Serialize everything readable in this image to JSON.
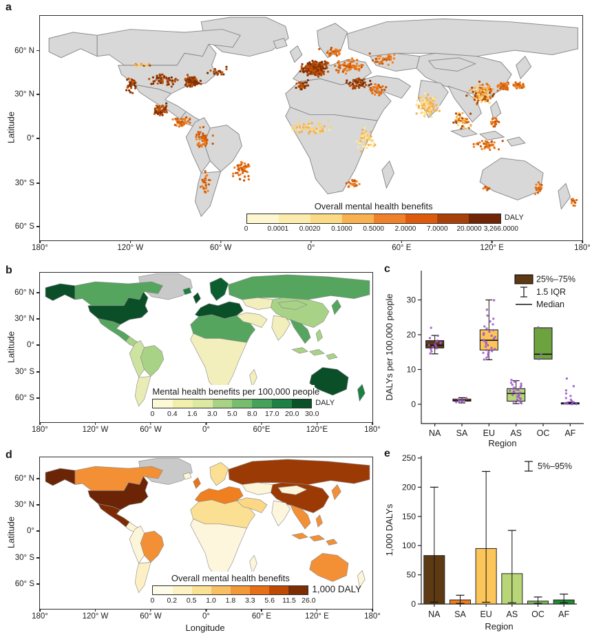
{
  "chart_data": [
    {
      "panel": "a",
      "type": "scatter-map",
      "ylabel": "Latitude",
      "yticks": [
        "60° N",
        "30° N",
        "0°",
        "30° S",
        "60° S"
      ],
      "xticks": [
        "180°",
        "120° W",
        "60° W",
        "0°",
        "60° E",
        "120° E",
        "180°"
      ],
      "land_color": "#d8d8d8",
      "border_color": "#8a8a8a",
      "legend": {
        "title": "Overall mental health benefits",
        "unit": "DALY",
        "ticks": [
          "0",
          "0.0001",
          "0.0020",
          "0.1000",
          "0.5000",
          "2.0000",
          "7.0000",
          "20.0000",
          "3,266.0000"
        ],
        "colors": [
          "#fdf6d0",
          "#fcecac",
          "#fbd985",
          "#f8b050",
          "#f08129",
          "#dd5a0d",
          "#a84109",
          "#6f2506"
        ]
      },
      "dot_palettes": {
        "dark": [
          "#a84708",
          "#8a3204",
          "#c35509",
          "#7b2d04"
        ],
        "orange": [
          "#e06a10",
          "#ef8123",
          "#c85608"
        ],
        "pale": [
          "#fbd26e",
          "#fce79c",
          "#f5ad4e"
        ],
        "mix": [
          "#e06a10",
          "#fbd26e",
          "#a84708",
          "#f5ad4e"
        ]
      },
      "dot_clusters": [
        {
          "lon": -98,
          "lat": 41,
          "sx": 11,
          "sy": 5,
          "n": 55,
          "p": "dark"
        },
        {
          "lon": -79,
          "lat": 40,
          "sx": 6,
          "sy": 4,
          "n": 75,
          "p": "dark"
        },
        {
          "lon": -119,
          "lat": 38,
          "sx": 4,
          "sy": 6,
          "n": 35,
          "p": "dark"
        },
        {
          "lon": -100,
          "lat": 21,
          "sx": 6,
          "sy": 4,
          "n": 55,
          "p": "dark"
        },
        {
          "lon": -86,
          "lat": 13,
          "sx": 7,
          "sy": 4,
          "n": 40,
          "p": "orange"
        },
        {
          "lon": -72,
          "lat": 2,
          "sx": 7,
          "sy": 7,
          "n": 45,
          "p": "orange"
        },
        {
          "lon": -46,
          "lat": -19,
          "sx": 7,
          "sy": 7,
          "n": 55,
          "p": "orange"
        },
        {
          "lon": -70,
          "lat": -27,
          "sx": 3,
          "sy": 9,
          "n": 28,
          "p": "orange"
        },
        {
          "lon": 3,
          "lat": 49,
          "sx": 9,
          "sy": 5,
          "n": 260,
          "p": "dark"
        },
        {
          "lon": 24,
          "lat": 51,
          "sx": 9,
          "sy": 5,
          "n": 70,
          "p": "orange"
        },
        {
          "lon": 14,
          "lat": 60,
          "sx": 8,
          "sy": 3,
          "n": 30,
          "p": "orange"
        },
        {
          "lon": -6,
          "lat": 38,
          "sx": 5,
          "sy": 3,
          "n": 30,
          "p": "dark"
        },
        {
          "lon": 31,
          "lat": 39,
          "sx": 8,
          "sy": 4,
          "n": 60,
          "p": "dark"
        },
        {
          "lon": 44,
          "lat": 35,
          "sx": 6,
          "sy": 5,
          "n": 40,
          "p": "orange"
        },
        {
          "lon": 0,
          "lat": 9,
          "sx": 13,
          "sy": 5,
          "n": 65,
          "p": "pale"
        },
        {
          "lon": 37,
          "lat": 1,
          "sx": 6,
          "sy": 8,
          "n": 50,
          "p": "pale"
        },
        {
          "lon": 28,
          "lat": -28,
          "sx": 5,
          "sy": 3,
          "n": 22,
          "p": "orange"
        },
        {
          "lon": 48,
          "lat": 55,
          "sx": 11,
          "sy": 4,
          "n": 40,
          "p": "orange"
        },
        {
          "lon": 77,
          "lat": 23,
          "sx": 7,
          "sy": 8,
          "n": 110,
          "p": "pale"
        },
        {
          "lon": 101,
          "lat": 14,
          "sx": 6,
          "sy": 6,
          "n": 50,
          "p": "mix"
        },
        {
          "lon": 113,
          "lat": 32,
          "sx": 8,
          "sy": 7,
          "n": 130,
          "p": "mix"
        },
        {
          "lon": 127,
          "lat": 37,
          "sx": 4,
          "sy": 3,
          "n": 40,
          "p": "orange"
        },
        {
          "lon": 138,
          "lat": 37,
          "sx": 4,
          "sy": 3,
          "n": 35,
          "p": "orange"
        },
        {
          "lon": 117,
          "lat": -2,
          "sx": 10,
          "sy": 4,
          "n": 40,
          "p": "orange"
        },
        {
          "lon": 122,
          "lat": 13,
          "sx": 3,
          "sy": 5,
          "n": 22,
          "p": "orange"
        },
        {
          "lon": 151,
          "lat": -31,
          "sx": 3,
          "sy": 4,
          "n": 18,
          "p": "orange"
        },
        {
          "lon": 116,
          "lat": -32,
          "sx": 2,
          "sy": 2,
          "n": 8,
          "p": "orange"
        },
        {
          "lon": 174,
          "lat": -40,
          "sx": 2,
          "sy": 3,
          "n": 10,
          "p": "orange"
        },
        {
          "lon": -62,
          "lat": 47,
          "sx": 7,
          "sy": 3,
          "n": 18,
          "p": "dark"
        },
        {
          "lon": -113,
          "lat": 51,
          "sx": 7,
          "sy": 2,
          "n": 12,
          "p": "mix"
        }
      ]
    },
    {
      "panel": "b",
      "type": "choropleth",
      "ylabel": "Latitude",
      "yticks": [
        "60° N",
        "30° N",
        "0°",
        "30° S",
        "60° S"
      ],
      "xticks": [
        "180°",
        "120° W",
        "60° W",
        "0°",
        "60°E",
        "120°E",
        "180°"
      ],
      "border_color": "#8a8a8a",
      "legend": {
        "title": "Mental health benefits per 100,000 people",
        "unit": "DALY",
        "ticks": [
          "0",
          "0.4",
          "1.6",
          "3.0",
          "5.0",
          "8.0",
          "17.0",
          "20.0",
          "30.0"
        ],
        "colors": [
          "#fcfad6",
          "#f2eeac",
          "#dde8a2",
          "#a8d386",
          "#78bd6d",
          "#46a25a",
          "#1d8044",
          "#0a5329"
        ]
      },
      "country_colors": {
        "greenland": "#c9c9c9",
        "iceland": "#1d8044",
        "alaska": "#0a4f28",
        "canada": "#55a55e",
        "usa": "#0a4f28",
        "mexico": "#55a55e",
        "central_america": "#a8d386",
        "samerica_west": "#cde3a0",
        "brazil": "#a8d386",
        "argentina": "#e9ecb4",
        "africa_north": "#55a55e",
        "africa_sub": "#f2efbc",
        "madagascar": "#f2efbc",
        "uk": "#0a4f28",
        "europe": "#0a4f28",
        "scandinavia": "#0c5e2e",
        "russia": "#55a55e",
        "central_asia": "#f2efbc",
        "china": "#a8d386",
        "mongolia": "#a8d386",
        "middle_east": "#f2efbc",
        "india": "#f2efbc",
        "se_asia": "#55a55e",
        "japan": "#55a55e",
        "philippines": "#a8d386",
        "indonesia": "#a8d386",
        "australia": "#0a4f28",
        "new_zealand": "#1d8044"
      }
    },
    {
      "panel": "c",
      "type": "box",
      "ylabel": "DALYs per 100,000 people",
      "xlabel": "Region",
      "categories": [
        "NA",
        "SA",
        "EU",
        "AS",
        "OC",
        "AF"
      ],
      "yticks": [
        0,
        10,
        20,
        30
      ],
      "ylim": [
        -5,
        38
      ],
      "legend": {
        "box": "25%–75%",
        "iqr": "1.5 IQR",
        "median": "Median"
      },
      "point_color": "#9a55cc",
      "boxes": [
        {
          "region": "NA",
          "q1": 16.2,
          "median": 17.0,
          "q3": 18.3,
          "wlow": 14.5,
          "whigh": 19.8,
          "color": "#5d3a14"
        },
        {
          "region": "SA",
          "q1": 0.9,
          "median": 1.1,
          "q3": 1.5,
          "wlow": 0.4,
          "whigh": 1.9,
          "color": "#f07d1d"
        },
        {
          "region": "EU",
          "q1": 15.6,
          "median": 18.4,
          "q3": 21.4,
          "wlow": 12.8,
          "whigh": 30.0,
          "color": "#fbc55a"
        },
        {
          "region": "AS",
          "q1": 0.9,
          "median": 3.1,
          "q3": 4.5,
          "wlow": 0.2,
          "whigh": 6.8,
          "color": "#b8d677"
        },
        {
          "region": "OC",
          "q1": 13.0,
          "median": 14.4,
          "q3": 22.0,
          "wlow": 12.9,
          "whigh": 22.1,
          "color": "#6da33e"
        },
        {
          "region": "AF",
          "q1": 0.1,
          "median": 0.25,
          "q3": 0.45,
          "wlow": 0.05,
          "whigh": 0.6,
          "color": "#14691f"
        }
      ],
      "points": {
        "NA": [
          14.6,
          15.2,
          15.8,
          16.1,
          16.4,
          16.8,
          17.0,
          17.2,
          17.5,
          17.8,
          18.0,
          18.3,
          19.0,
          19.7,
          22.0
        ],
        "SA": [
          0.6,
          0.9,
          1.0,
          1.1,
          1.2,
          1.4,
          1.8
        ],
        "EU": [
          12.9,
          13.4,
          13.8,
          14.2,
          14.5,
          14.8,
          15.0,
          15.3,
          15.6,
          15.9,
          16.2,
          16.6,
          17.0,
          17.4,
          17.8,
          18.2,
          18.5,
          18.9,
          19.3,
          19.7,
          20.0,
          20.4,
          20.9,
          21.3,
          21.8,
          22.4,
          23.0,
          23.8,
          24.6,
          25.5,
          27.2,
          29.9
        ],
        "AS": [
          0.3,
          0.5,
          0.8,
          1.0,
          1.3,
          1.6,
          1.9,
          2.2,
          2.5,
          2.7,
          2.9,
          3.1,
          3.3,
          3.5,
          3.7,
          3.9,
          4.1,
          4.3,
          4.5,
          4.8,
          5.0,
          5.3,
          5.6,
          5.9,
          6.2,
          6.5,
          6.7,
          7.0
        ],
        "OC": [
          13.0,
          14.4,
          21.9,
          22.1
        ],
        "AF": [
          0.05,
          0.1,
          0.15,
          0.2,
          0.25,
          0.3,
          0.4,
          0.6,
          0.9,
          1.3,
          1.8,
          2.4,
          3.1,
          4.0,
          5.2,
          7.4
        ]
      }
    },
    {
      "panel": "d",
      "type": "choropleth",
      "ylabel": "Latitude",
      "xlabel": "Longitude",
      "yticks": [
        "60° N",
        "30° N",
        "0°",
        "30° S",
        "60° S"
      ],
      "xticks": [
        "180°",
        "120° W",
        "60° W",
        "0°",
        "60° E",
        "120° E",
        "180°"
      ],
      "border_color": "#8a8a8a",
      "legend": {
        "title": "Overall mental health benefits",
        "unit": "1,000 DALY",
        "ticks": [
          "0",
          "0.2",
          "0.5",
          "1.0",
          "1.8",
          "3.3",
          "5.6",
          "11.5",
          "26.0"
        ],
        "colors": [
          "#fefce8",
          "#fdf2c4",
          "#fbe193",
          "#f9bf64",
          "#f4993a",
          "#e76f15",
          "#bf4a04",
          "#7d2d04"
        ]
      },
      "country_colors": {
        "greenland": "#c9c9c9",
        "iceland": "#fdf5d7",
        "alaska": "#6b2405",
        "canada": "#f39035",
        "usa": "#6b2405",
        "mexico": "#7e2a05",
        "central_america": "#fdf5d7",
        "samerica_west": "#fdf5d7",
        "brazil": "#f39035",
        "argentina": "#fdf0c4",
        "africa_north": "#fbe093",
        "africa_sub": "#fdf6dd",
        "madagascar": "#fdf6dd",
        "uk": "#e8731a",
        "europe": "#ef7f1f",
        "scandinavia": "#fbe093",
        "russia": "#9c3a06",
        "central_asia": "#fdf5d7",
        "china": "#9c3a06",
        "mongolia": "#fdf5d7",
        "middle_east": "#fbd786",
        "india": "#fdf6dd",
        "se_asia": "#f39035",
        "japan": "#f39035",
        "philippines": "#f39035",
        "indonesia": "#f39035",
        "australia": "#f39035",
        "new_zealand": "#fdf5d7"
      }
    },
    {
      "panel": "e",
      "type": "bar",
      "ylabel": "1,000 DALYs",
      "xlabel": "Region",
      "categories": [
        "NA",
        "SA",
        "EU",
        "AS",
        "OC",
        "AF"
      ],
      "values": [
        83,
        7,
        95,
        52,
        5,
        7
      ],
      "err_low": [
        3,
        1,
        3,
        2,
        1,
        2
      ],
      "err_high": [
        200,
        15,
        227,
        126,
        12,
        17
      ],
      "colors": [
        "#5d3a14",
        "#f07d1d",
        "#fbc55a",
        "#b8d677",
        "#7cb65b",
        "#1f8a2f"
      ],
      "ylim": [
        0,
        250
      ],
      "yticks": [
        0,
        50,
        100,
        150,
        200,
        250
      ],
      "legend": "5%–95%"
    }
  ]
}
